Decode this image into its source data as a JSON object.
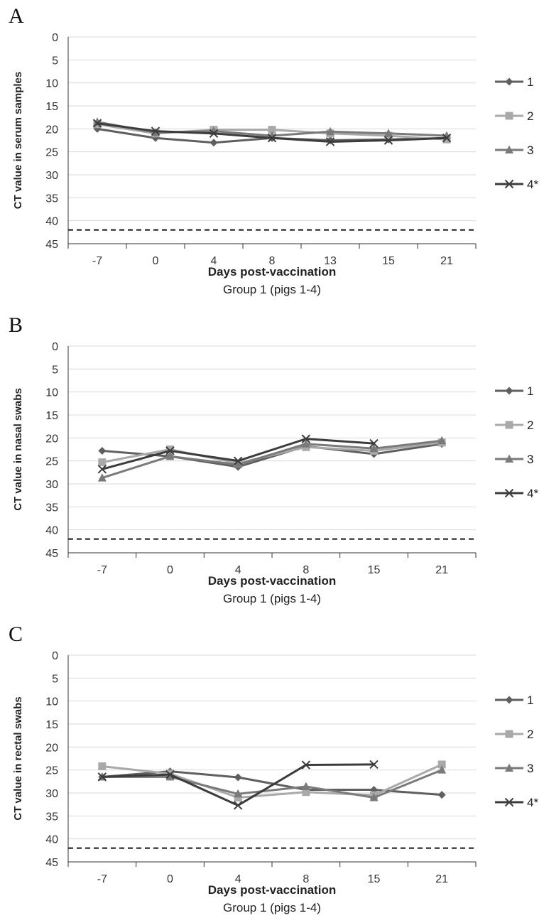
{
  "chart_data": [
    {
      "type": "line",
      "panel": "A",
      "ylabel": "CT value in serum samples",
      "xlabel": "Days post-vaccination",
      "subtitle": "Group 1 (pigs 1-4)",
      "categories": [
        "-7",
        "0",
        "4",
        "8",
        "13",
        "15",
        "21"
      ],
      "yticks": [
        "0",
        "5",
        "10",
        "15",
        "20",
        "25",
        "30",
        "35",
        "40",
        "45"
      ],
      "ylim": [
        0,
        45
      ],
      "y_inverted": true,
      "threshold": 42,
      "grid": true,
      "legend_position": "right",
      "series": [
        {
          "name": "1",
          "marker": "diamond",
          "color": "#5f5f5f",
          "values": [
            20.0,
            22.0,
            23.0,
            22.0,
            22.5,
            22.3,
            22.0
          ]
        },
        {
          "name": "2",
          "marker": "square",
          "color": "#a9a9a9",
          "values": [
            19.0,
            21.0,
            20.2,
            20.2,
            21.0,
            21.5,
            22.3
          ]
        },
        {
          "name": "3",
          "marker": "triangle",
          "color": "#7a7a7a",
          "values": [
            18.5,
            20.8,
            20.5,
            21.5,
            20.6,
            21.0,
            21.5
          ]
        },
        {
          "name": "4*",
          "marker": "x",
          "color": "#3c3c3c",
          "values": [
            18.8,
            20.5,
            21.0,
            22.0,
            22.8,
            22.5,
            22.0
          ]
        }
      ]
    },
    {
      "type": "line",
      "panel": "B",
      "ylabel": "CT value in nasal swabs",
      "xlabel": "Days post-vaccination",
      "subtitle": "Group 1 (pigs 1-4)",
      "categories": [
        "-7",
        "0",
        "4",
        "8",
        "15",
        "21"
      ],
      "yticks": [
        "0",
        "5",
        "10",
        "15",
        "20",
        "25",
        "30",
        "35",
        "40",
        "45"
      ],
      "ylim": [
        0,
        45
      ],
      "y_inverted": true,
      "threshold": 42,
      "grid": true,
      "legend_position": "right",
      "series": [
        {
          "name": "1",
          "marker": "diamond",
          "color": "#5f5f5f",
          "values": [
            22.8,
            24.0,
            26.3,
            21.8,
            23.5,
            21.3
          ]
        },
        {
          "name": "2",
          "marker": "square",
          "color": "#a9a9a9",
          "values": [
            25.3,
            22.5,
            25.5,
            22.0,
            22.8,
            21.0
          ]
        },
        {
          "name": "3",
          "marker": "triangle",
          "color": "#7a7a7a",
          "values": [
            28.7,
            24.0,
            25.8,
            21.3,
            22.3,
            20.6
          ]
        },
        {
          "name": "4*",
          "marker": "x",
          "color": "#3c3c3c",
          "values": [
            26.8,
            22.8,
            25.0,
            20.2,
            21.2,
            null
          ]
        }
      ]
    },
    {
      "type": "line",
      "panel": "C",
      "ylabel": "CT value in rectal swabs",
      "xlabel": "Days post-vaccination",
      "subtitle": "Group 1 (pigs 1-4)",
      "categories": [
        "-7",
        "0",
        "4",
        "8",
        "15",
        "21"
      ],
      "yticks": [
        "0",
        "5",
        "10",
        "15",
        "20",
        "25",
        "30",
        "35",
        "40",
        "45"
      ],
      "ylim": [
        0,
        45
      ],
      "y_inverted": true,
      "threshold": 42,
      "grid": true,
      "legend_position": "right",
      "series": [
        {
          "name": "1",
          "marker": "diamond",
          "color": "#5f5f5f",
          "values": [
            26.5,
            25.3,
            26.6,
            29.3,
            29.3,
            30.4
          ]
        },
        {
          "name": "2",
          "marker": "square",
          "color": "#a9a9a9",
          "values": [
            24.2,
            25.8,
            31.0,
            29.8,
            30.5,
            23.8
          ]
        },
        {
          "name": "3",
          "marker": "triangle",
          "color": "#7a7a7a",
          "values": [
            26.5,
            26.5,
            30.2,
            28.6,
            31.0,
            25.0
          ]
        },
        {
          "name": "4*",
          "marker": "x",
          "color": "#3c3c3c",
          "values": [
            26.5,
            26.0,
            32.7,
            23.9,
            23.8,
            null
          ]
        }
      ]
    }
  ]
}
